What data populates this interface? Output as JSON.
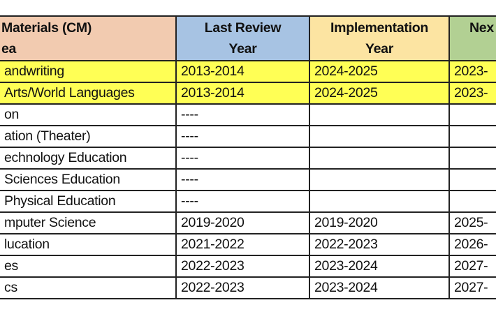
{
  "header": {
    "col1_line1": "Materials (CM)",
    "col1_line2": "ea",
    "col2_line1": "Last Review",
    "col2_line2": "Year",
    "col3_line1": "Implementation",
    "col3_line2": "Year",
    "col4_line1": "Nex"
  },
  "header_colors": {
    "col1": "#f2cbb0",
    "col2": "#a7c3e3",
    "col3": "#fce4a2",
    "col4": "#b2d093",
    "highlight": "#ffff55"
  },
  "rows": [
    {
      "area": "andwriting",
      "last": "2013-2014",
      "impl": "2024-2025",
      "next": "2023-",
      "highlight": true
    },
    {
      "area": "Arts/World Languages",
      "last": "2013-2014",
      "impl": "2024-2025",
      "next": "2023-",
      "highlight": true
    },
    {
      "area": "on",
      "last": "----",
      "impl": "",
      "next": ""
    },
    {
      "area": "ation (Theater)",
      "last": "----",
      "impl": "",
      "next": ""
    },
    {
      "area": "echnology Education",
      "last": "----",
      "impl": "",
      "next": ""
    },
    {
      "area": "Sciences Education",
      "last": "----",
      "impl": "",
      "next": ""
    },
    {
      "area": " Physical Education",
      "last": "----",
      "impl": "",
      "next": ""
    },
    {
      "area": "mputer Science",
      "last": "2019-2020",
      "impl": "2019-2020",
      "next": "2025-"
    },
    {
      "area": "lucation",
      "last": "2021-2022",
      "impl": "2022-2023",
      "next": "2026-"
    },
    {
      "area": "es",
      "last": "2022-2023",
      "impl": "2023-2024",
      "next": "2027-"
    },
    {
      "area": "cs",
      "last": "2022-2023",
      "impl": "2023-2024",
      "next": "2027-"
    }
  ]
}
